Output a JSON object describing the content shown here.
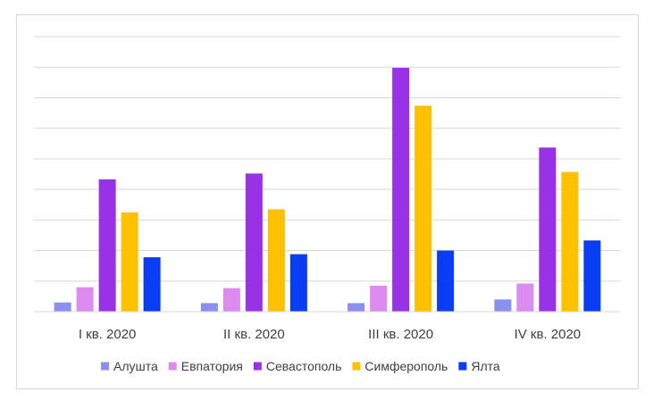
{
  "chart_data": {
    "type": "bar",
    "categories": [
      "I кв. 2020",
      "II кв. 2020",
      "III кв. 2020",
      "IV кв. 2020"
    ],
    "series": [
      {
        "name": "Алушта",
        "color": "#8a8ff0",
        "values": [
          3,
          2.8,
          2.8,
          4
        ]
      },
      {
        "name": "Евпатория",
        "color": "#dc8cf0",
        "values": [
          8,
          7.7,
          8.5,
          9.2
        ]
      },
      {
        "name": "Севастополь",
        "color": "#9932e6",
        "values": [
          43.3,
          45.2,
          79.8,
          53.7
        ]
      },
      {
        "name": "Симферополь",
        "color": "#ffc000",
        "values": [
          32.5,
          33.5,
          67.4,
          45.7
        ]
      },
      {
        "name": "Ялта",
        "color": "#0a3cf5",
        "values": [
          17.8,
          18.8,
          20,
          23.3
        ]
      }
    ],
    "ylim": [
      0,
      90
    ],
    "grid": true,
    "legend": "bottom",
    "title": "",
    "xlabel": "",
    "ylabel": ""
  }
}
